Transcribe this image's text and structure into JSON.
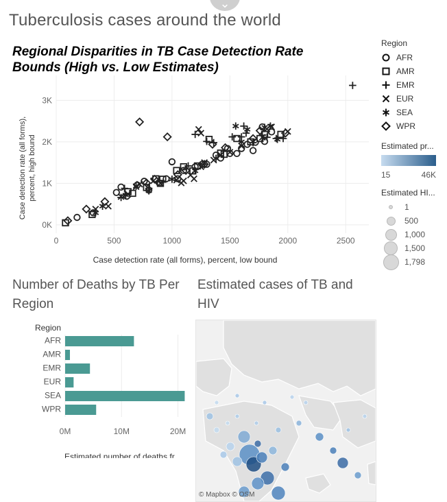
{
  "dashboard": {
    "title": "Tuberculosis cases around the world",
    "top_handle_icon": "chevron-down-icon"
  },
  "scatter": {
    "title": "Regional Disparities in TB Case Detection Rate Bounds (High vs. Low Estimates)"
  },
  "legend": {
    "region_title": "Region",
    "regions": [
      {
        "label": "AFR",
        "shape": "circle-icon"
      },
      {
        "label": "AMR",
        "shape": "square-icon"
      },
      {
        "label": "EMR",
        "shape": "plus-icon"
      },
      {
        "label": "EUR",
        "shape": "cross-icon"
      },
      {
        "label": "SEA",
        "shape": "asterisk-icon"
      },
      {
        "label": "WPR",
        "shape": "diamond-icon"
      }
    ],
    "color_title": "Estimated pr...",
    "color_min": "15",
    "color_max": "46K",
    "color_low_hex": "#c6dbef",
    "color_high_hex": "#2b5e8c",
    "size_title": "Estimated HI...",
    "size_items": [
      "1",
      "500",
      "1,000",
      "1,500",
      "1,798"
    ]
  },
  "bar_section": {
    "title": "Number of Deaths by TB Per Region"
  },
  "map_section": {
    "title": "Estimated cases of TB and HIV",
    "attribution": "© Mapbox  © OSM"
  },
  "chart_data": [
    {
      "type": "scatter",
      "title": "Regional Disparities in TB Case Detection Rate Bounds (High vs. Low Estimates)",
      "xlabel": "Case detection rate (all forms), percent, low bound",
      "ylabel": "Case detection rate (all forms), percent, high bound",
      "xlim": [
        0,
        2700
      ],
      "ylim": [
        -200,
        3600
      ],
      "xticks": [
        0,
        500,
        1000,
        1500,
        2000,
        2500
      ],
      "xtick_labels": [
        "0",
        "500",
        "1000",
        "1500",
        "2000",
        "2500"
      ],
      "yticks": [
        0,
        1000,
        2000,
        3000
      ],
      "ytick_labels": [
        "0K",
        "1K",
        "2K",
        "3K"
      ],
      "grid": true,
      "legend_position": "right",
      "series": [
        {
          "name": "AFR",
          "marker": "circle",
          "points": [
            [
              180,
              180
            ],
            [
              320,
              290
            ],
            [
              520,
              780
            ],
            [
              560,
              910
            ],
            [
              610,
              690
            ],
            [
              700,
              960
            ],
            [
              760,
              1050
            ],
            [
              800,
              840
            ],
            [
              890,
              1010
            ],
            [
              950,
              1110
            ],
            [
              1000,
              1520
            ],
            [
              1050,
              1110
            ],
            [
              1100,
              1310
            ],
            [
              1200,
              1400
            ],
            [
              1260,
              1460
            ],
            [
              1300,
              1460
            ],
            [
              1380,
              1680
            ],
            [
              1420,
              1610
            ],
            [
              1500,
              1720
            ],
            [
              1560,
              1720
            ],
            [
              1600,
              1840
            ],
            [
              1650,
              1940
            ],
            [
              1700,
              1790
            ],
            [
              1780,
              2360
            ],
            [
              1800,
              2010
            ],
            [
              1860,
              2240
            ],
            [
              1720,
              1990
            ],
            [
              1480,
              1840
            ]
          ]
        },
        {
          "name": "AMR",
          "marker": "square",
          "points": [
            [
              80,
              50
            ],
            [
              310,
              250
            ],
            [
              620,
              800
            ],
            [
              660,
              760
            ],
            [
              780,
              900
            ],
            [
              860,
              1110
            ],
            [
              900,
              1000
            ],
            [
              920,
              1100
            ],
            [
              1040,
              1310
            ],
            [
              1100,
              1400
            ],
            [
              1180,
              1300
            ],
            [
              1220,
              1420
            ],
            [
              1320,
              2060
            ],
            [
              1420,
              1730
            ],
            [
              1450,
              1700
            ],
            [
              1680,
              2000
            ],
            [
              1800,
              2180
            ],
            [
              1940,
              2180
            ],
            [
              1760,
              2080
            ],
            [
              1560,
              2080
            ]
          ]
        },
        {
          "name": "EMR",
          "marker": "plus",
          "points": [
            [
              560,
              660
            ],
            [
              590,
              880
            ],
            [
              800,
              880
            ],
            [
              1140,
              1420
            ],
            [
              1200,
              2180
            ],
            [
              1300,
              2010
            ],
            [
              1360,
              1980
            ],
            [
              1520,
              2120
            ],
            [
              1600,
              2120
            ],
            [
              1620,
              2380
            ],
            [
              1640,
              2210
            ],
            [
              1700,
              1980
            ],
            [
              1780,
              2160
            ],
            [
              1820,
              2110
            ],
            [
              1900,
              2080
            ],
            [
              1960,
              2080
            ],
            [
              2560,
              3360
            ]
          ]
        },
        {
          "name": "EUR",
          "marker": "cross",
          "points": [
            [
              340,
              380
            ],
            [
              450,
              450
            ],
            [
              560,
              680
            ],
            [
              620,
              740
            ],
            [
              690,
              920
            ],
            [
              720,
              980
            ],
            [
              840,
              1060
            ],
            [
              900,
              1000
            ],
            [
              1040,
              1080
            ],
            [
              1080,
              1010
            ],
            [
              1100,
              1060
            ],
            [
              1160,
              1200
            ],
            [
              1190,
              1110
            ],
            [
              1250,
              1400
            ],
            [
              1250,
              2210
            ],
            [
              1280,
              1500
            ],
            [
              1360,
              1560
            ],
            [
              1420,
              1680
            ],
            [
              1500,
              1750
            ],
            [
              1600,
              1900
            ],
            [
              1780,
              2110
            ],
            [
              1820,
              2310
            ],
            [
              1860,
              2360
            ],
            [
              2000,
              2250
            ],
            [
              1230,
              2300
            ]
          ]
        },
        {
          "name": "SEA",
          "marker": "asterisk",
          "points": [
            [
              340,
              290
            ],
            [
              400,
              450
            ],
            [
              600,
              720
            ],
            [
              690,
              930
            ],
            [
              800,
              820
            ],
            [
              1000,
              1100
            ],
            [
              1200,
              1300
            ],
            [
              1380,
              1600
            ],
            [
              1600,
              2000
            ],
            [
              1650,
              2300
            ],
            [
              1800,
              2350
            ],
            [
              1850,
              2380
            ],
            [
              1910,
              2060
            ],
            [
              1550,
              2380
            ]
          ]
        },
        {
          "name": "WPR",
          "marker": "diamond",
          "points": [
            [
              100,
              100
            ],
            [
              260,
              380
            ],
            [
              420,
              560
            ],
            [
              720,
              2480
            ],
            [
              780,
              1010
            ],
            [
              850,
              1100
            ],
            [
              960,
              2120
            ],
            [
              1050,
              1210
            ],
            [
              1120,
              1310
            ],
            [
              1280,
              1460
            ],
            [
              1350,
              1940
            ],
            [
              1460,
              1860
            ],
            [
              1700,
              2080
            ],
            [
              1760,
              2270
            ],
            [
              1980,
              2210
            ]
          ]
        }
      ]
    },
    {
      "type": "bar",
      "orientation": "horizontal",
      "title": "Number of Deaths by TB Per Region",
      "category_label": "Region",
      "categories": [
        "AFR",
        "AMR",
        "EMR",
        "EUR",
        "SEA",
        "WPR"
      ],
      "values": [
        12200000,
        850000,
        4400000,
        1500000,
        21200000,
        5500000
      ],
      "xlabel": "Estimated number of deaths fr...",
      "xlim": [
        0,
        22000000
      ],
      "xticks": [
        0,
        10000000,
        20000000
      ],
      "xtick_labels": [
        "0M",
        "10M",
        "20M"
      ],
      "bar_color": "#4a9a93"
    }
  ]
}
